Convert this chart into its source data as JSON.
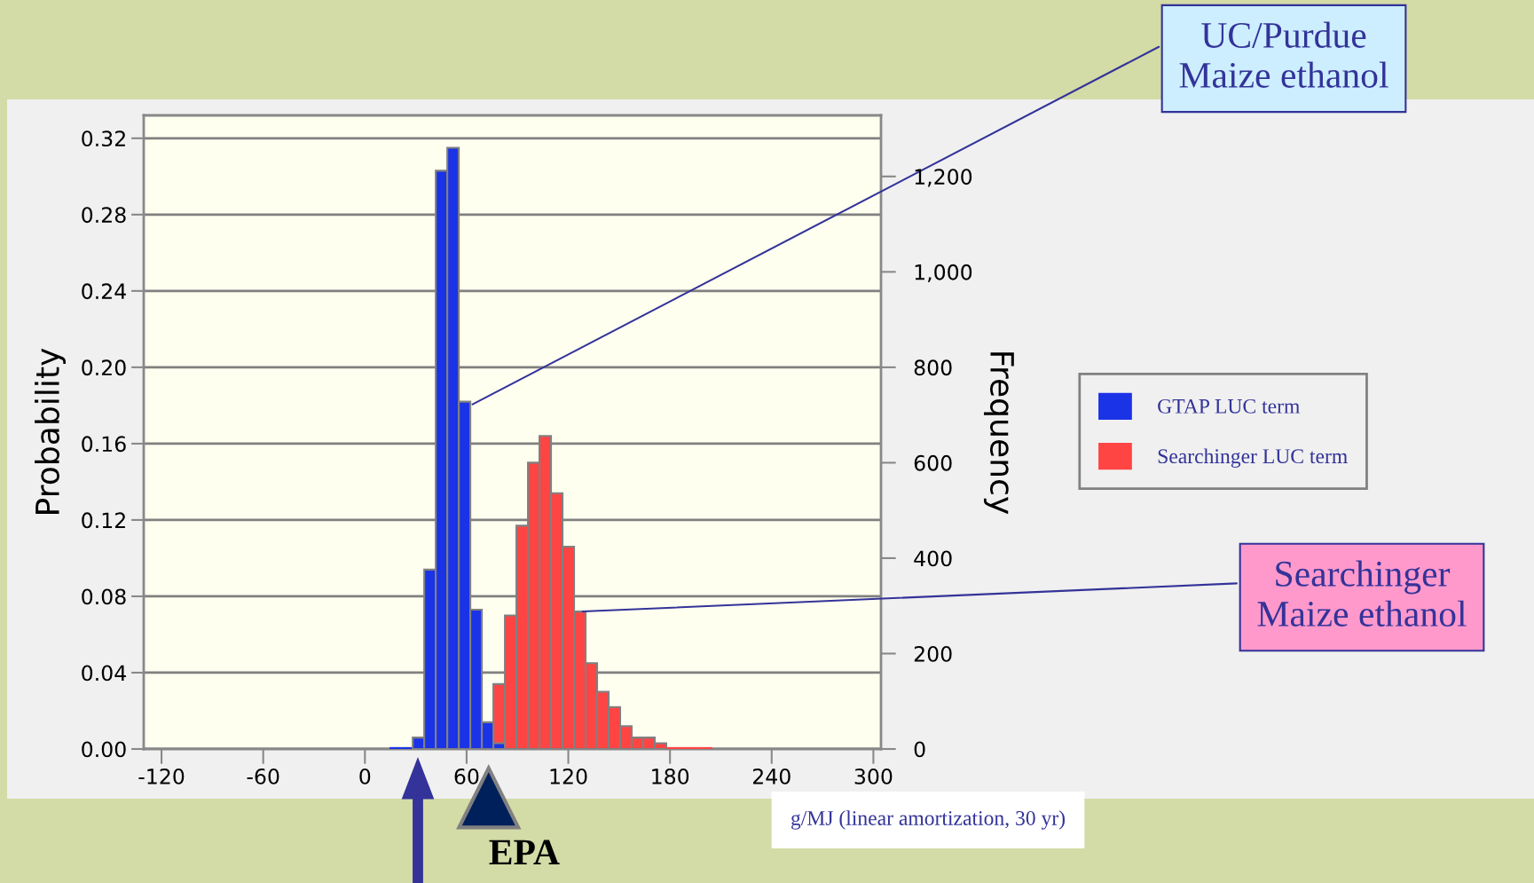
{
  "chart_data": {
    "type": "histogram",
    "bins": [
      14.6,
      21.4,
      28.2,
      35.0,
      41.8,
      48.6,
      55.4,
      62.2,
      69.0,
      75.8,
      82.6,
      89.4,
      96.2,
      103.0,
      109.8,
      116.6,
      123.4,
      130.2,
      137.0,
      143.8,
      150.6,
      157.4,
      164.2,
      171.0,
      177.8,
      184.6,
      191.4,
      198.2,
      205.0
    ],
    "series": [
      {
        "name": "Searchinger LUC term",
        "color": "#ff4444",
        "values": [
          0,
          0,
          0,
          0,
          0,
          0,
          0,
          0,
          0,
          0.034,
          0.07,
          0.117,
          0.15,
          0.164,
          0.134,
          0.106,
          0.072,
          0.045,
          0.03,
          0.022,
          0.012,
          0.006,
          0.006,
          0.003,
          0.001,
          0.001,
          0.001,
          0.001
        ]
      },
      {
        "name": "GTAP LUC term",
        "color": "#1a33e6",
        "values": [
          0.001,
          0.001,
          0.006,
          0.094,
          0.303,
          0.315,
          0.182,
          0.073,
          0.014,
          0.003,
          0,
          0,
          0,
          0,
          0,
          0,
          0,
          0,
          0,
          0,
          0,
          0,
          0,
          0,
          0,
          0,
          0,
          0
        ]
      }
    ],
    "xlabel": "g/MJ (linear amortization, 30 yr)",
    "ylabel": "Probability",
    "y2label": "Frequency",
    "xlim": [
      -130.5,
      304.5
    ],
    "xticks": [
      -120,
      -60,
      0,
      60,
      120,
      180,
      240,
      300
    ],
    "ylim": [
      0,
      0.332
    ],
    "yticks": [
      {
        "value": 0,
        "label": "0.00"
      },
      {
        "value": 0.04,
        "label": "0.04"
      },
      {
        "value": 0.08,
        "label": "0.08"
      },
      {
        "value": 0.12,
        "label": "0.12"
      },
      {
        "value": 0.16,
        "label": "0.16"
      },
      {
        "value": 0.2,
        "label": "0.20"
      },
      {
        "value": 0.24,
        "label": "0.24"
      },
      {
        "value": 0.28,
        "label": "0.28"
      },
      {
        "value": 0.32,
        "label": "0.32"
      }
    ],
    "y2lim": [
      0,
      1328
    ],
    "y2ticks": [
      0,
      200,
      400,
      600,
      800,
      {
        "value": 1000,
        "label": "1,000"
      },
      {
        "value": 1200,
        "label": "1,200"
      }
    ],
    "grid": "y",
    "legend": "right",
    "annotations": [
      {
        "text": "UC/Purdue\nMaize ethanol",
        "x": 62.2,
        "y": 0.18
      },
      {
        "text": "Searchinger\nMaize ethanol",
        "x": 127,
        "y": 0.072
      },
      {
        "text": "EPA",
        "x": 73,
        "y": 0
      }
    ]
  }
}
